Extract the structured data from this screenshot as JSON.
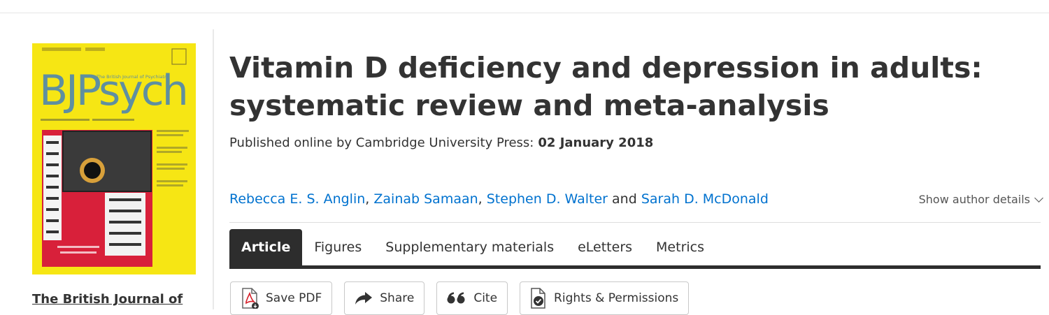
{
  "journal": {
    "cover_logo": "BJPsych",
    "cover_subtitle": "The British Journal of Psychiatry",
    "name_link": "The British Journal of"
  },
  "article": {
    "title": "Vitamin D deficiency and depression in adults: systematic review and meta-analysis",
    "published_label": "Published online by Cambridge University Press:",
    "published_date": "02 January 2018",
    "authors": [
      {
        "name": "Rebecca E. S. Anglin"
      },
      {
        "name": "Zainab Samaan"
      },
      {
        "name": "Stephen D. Walter"
      },
      {
        "name": "Sarah D. McDonald"
      }
    ],
    "authors_joiner": "and",
    "show_author_details": "Show author details"
  },
  "tabs": [
    {
      "label": "Article",
      "active": true
    },
    {
      "label": "Figures",
      "active": false
    },
    {
      "label": "Supplementary materials",
      "active": false
    },
    {
      "label": "eLetters",
      "active": false
    },
    {
      "label": "Metrics",
      "active": false
    }
  ],
  "actions": {
    "save_pdf": "Save PDF",
    "share": "Share",
    "cite": "Cite",
    "rights": "Rights & Permissions"
  },
  "colors": {
    "link": "#0072cf",
    "tab_active_bg": "#2d2d2d",
    "cover_yellow": "#f6e614",
    "cover_red": "#d8203a",
    "pdf_red": "#d6202a"
  }
}
